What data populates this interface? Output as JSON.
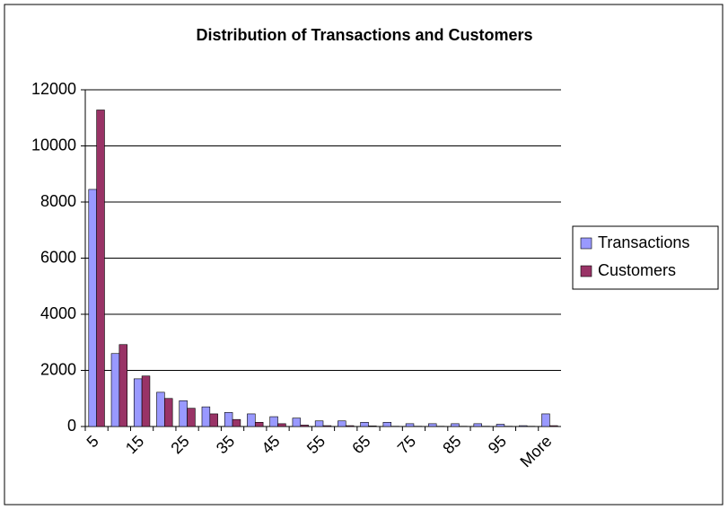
{
  "chart_data": {
    "type": "bar",
    "title": "Distribution of Transactions and Customers",
    "categories": [
      "5",
      null,
      "15",
      null,
      "25",
      null,
      "35",
      null,
      "45",
      null,
      "55",
      null,
      "65",
      null,
      "75",
      null,
      "85",
      null,
      "95",
      null,
      "More"
    ],
    "series": [
      {
        "name": "Transactions",
        "color": "#9999ff",
        "values": [
          8450,
          2600,
          1700,
          1220,
          920,
          700,
          500,
          450,
          350,
          300,
          200,
          200,
          150,
          150,
          100,
          100,
          100,
          100,
          80,
          30,
          450
        ]
      },
      {
        "name": "Customers",
        "color": "#993366",
        "values": [
          11280,
          2920,
          1800,
          1000,
          650,
          450,
          250,
          150,
          100,
          50,
          30,
          30,
          20,
          10,
          10,
          10,
          10,
          10,
          10,
          10,
          30
        ]
      }
    ],
    "ylim": [
      0,
      12000
    ],
    "yticks": [
      0,
      2000,
      4000,
      6000,
      8000,
      10000,
      12000
    ],
    "grid": true,
    "legend": "right"
  }
}
